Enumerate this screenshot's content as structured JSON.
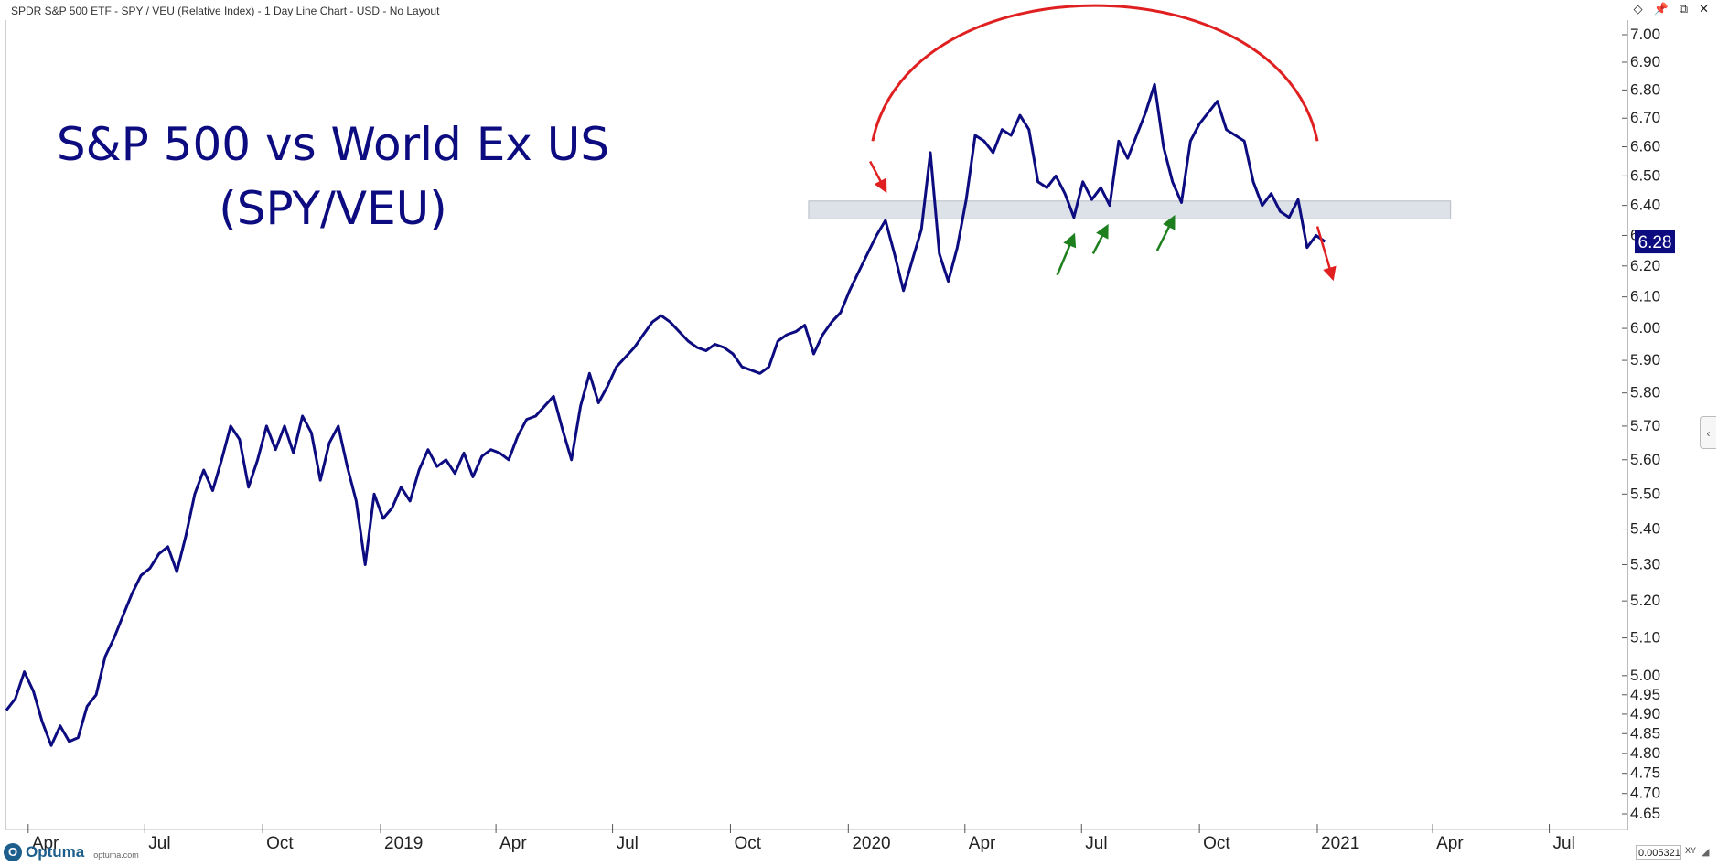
{
  "header": {
    "title": "SPDR S&P 500 ETF - SPY / VEU (Relative Index) - 1 Day Line Chart - USD - No Layout",
    "icons": [
      "diamond-icon",
      "pin-icon",
      "restore-icon",
      "close-icon"
    ]
  },
  "footer": {
    "logo_text": "Optuma",
    "logo_url": "optuma.com",
    "scale_value": "0.0053219",
    "xy_label": "XY"
  },
  "colors": {
    "line": "#0c0c80",
    "title": "#0c0c80",
    "annotation_red": "#e02020",
    "annotation_green": "#1e7f1e",
    "support_band": "#dde1e8",
    "price_label_bg": "#0c0c80"
  },
  "chart_data": {
    "type": "line",
    "title_line1": "S&P 500 vs World Ex US",
    "title_line2": "(SPY/VEU)",
    "y_scale": "log",
    "ylim": [
      4.65,
      7.05
    ],
    "y_ticks": [
      "7.00",
      "6.90",
      "6.80",
      "6.70",
      "6.60",
      "6.50",
      "6.40",
      "6.30",
      "6.20",
      "6.10",
      "6.00",
      "5.90",
      "5.80",
      "5.70",
      "5.60",
      "5.50",
      "5.40",
      "5.30",
      "5.20",
      "5.10",
      "5.00",
      "4.95",
      "4.90",
      "4.85",
      "4.80",
      "4.75",
      "4.70",
      "4.65"
    ],
    "x_range": [
      "2018-03-15",
      "2021-08-31"
    ],
    "x_ticks": [
      {
        "label": "Apr",
        "date": "2018-04-01"
      },
      {
        "label": "Jul",
        "date": "2018-07-01"
      },
      {
        "label": "Oct",
        "date": "2018-10-01"
      },
      {
        "label": "2019",
        "date": "2019-01-01"
      },
      {
        "label": "Apr",
        "date": "2019-04-01"
      },
      {
        "label": "Jul",
        "date": "2019-07-01"
      },
      {
        "label": "Oct",
        "date": "2019-10-01"
      },
      {
        "label": "2020",
        "date": "2020-01-01"
      },
      {
        "label": "Apr",
        "date": "2020-04-01"
      },
      {
        "label": "Jul",
        "date": "2020-07-01"
      },
      {
        "label": "Oct",
        "date": "2020-10-01"
      },
      {
        "label": "2021",
        "date": "2021-01-01"
      },
      {
        "label": "Apr",
        "date": "2021-04-01"
      },
      {
        "label": "Jul",
        "date": "2021-07-01"
      }
    ],
    "last_value_label": "6.28",
    "series": [
      {
        "points": [
          [
            "2018-03-15",
            4.91
          ],
          [
            "2018-03-22",
            4.94
          ],
          [
            "2018-03-29",
            5.01
          ],
          [
            "2018-04-05",
            4.96
          ],
          [
            "2018-04-12",
            4.88
          ],
          [
            "2018-04-19",
            4.82
          ],
          [
            "2018-04-26",
            4.87
          ],
          [
            "2018-05-03",
            4.83
          ],
          [
            "2018-05-10",
            4.84
          ],
          [
            "2018-05-17",
            4.92
          ],
          [
            "2018-05-24",
            4.95
          ],
          [
            "2018-05-31",
            5.05
          ],
          [
            "2018-06-07",
            5.1
          ],
          [
            "2018-06-14",
            5.16
          ],
          [
            "2018-06-21",
            5.22
          ],
          [
            "2018-06-28",
            5.27
          ],
          [
            "2018-07-05",
            5.29
          ],
          [
            "2018-07-12",
            5.33
          ],
          [
            "2018-07-19",
            5.35
          ],
          [
            "2018-07-26",
            5.28
          ],
          [
            "2018-08-02",
            5.38
          ],
          [
            "2018-08-09",
            5.5
          ],
          [
            "2018-08-16",
            5.57
          ],
          [
            "2018-08-23",
            5.51
          ],
          [
            "2018-08-30",
            5.6
          ],
          [
            "2018-09-06",
            5.7
          ],
          [
            "2018-09-13",
            5.66
          ],
          [
            "2018-09-20",
            5.52
          ],
          [
            "2018-09-27",
            5.6
          ],
          [
            "2018-10-04",
            5.7
          ],
          [
            "2018-10-11",
            5.63
          ],
          [
            "2018-10-18",
            5.7
          ],
          [
            "2018-10-25",
            5.62
          ],
          [
            "2018-11-01",
            5.73
          ],
          [
            "2018-11-08",
            5.68
          ],
          [
            "2018-11-15",
            5.54
          ],
          [
            "2018-11-22",
            5.65
          ],
          [
            "2018-11-29",
            5.7
          ],
          [
            "2018-12-06",
            5.58
          ],
          [
            "2018-12-13",
            5.48
          ],
          [
            "2018-12-20",
            5.3
          ],
          [
            "2018-12-27",
            5.5
          ],
          [
            "2019-01-03",
            5.43
          ],
          [
            "2019-01-10",
            5.46
          ],
          [
            "2019-01-17",
            5.52
          ],
          [
            "2019-01-24",
            5.48
          ],
          [
            "2019-01-31",
            5.57
          ],
          [
            "2019-02-07",
            5.63
          ],
          [
            "2019-02-14",
            5.58
          ],
          [
            "2019-02-21",
            5.6
          ],
          [
            "2019-02-28",
            5.56
          ],
          [
            "2019-03-07",
            5.62
          ],
          [
            "2019-03-14",
            5.55
          ],
          [
            "2019-03-21",
            5.61
          ],
          [
            "2019-03-28",
            5.63
          ],
          [
            "2019-04-04",
            5.62
          ],
          [
            "2019-04-11",
            5.6
          ],
          [
            "2019-04-18",
            5.67
          ],
          [
            "2019-04-25",
            5.72
          ],
          [
            "2019-05-02",
            5.73
          ],
          [
            "2019-05-09",
            5.76
          ],
          [
            "2019-05-16",
            5.79
          ],
          [
            "2019-05-23",
            5.69
          ],
          [
            "2019-05-30",
            5.6
          ],
          [
            "2019-06-06",
            5.76
          ],
          [
            "2019-06-13",
            5.86
          ],
          [
            "2019-06-20",
            5.77
          ],
          [
            "2019-06-27",
            5.82
          ],
          [
            "2019-07-04",
            5.88
          ],
          [
            "2019-07-11",
            5.91
          ],
          [
            "2019-07-18",
            5.94
          ],
          [
            "2019-07-25",
            5.98
          ],
          [
            "2019-08-01",
            6.02
          ],
          [
            "2019-08-08",
            6.04
          ],
          [
            "2019-08-15",
            6.02
          ],
          [
            "2019-08-22",
            5.99
          ],
          [
            "2019-08-29",
            5.96
          ],
          [
            "2019-09-05",
            5.94
          ],
          [
            "2019-09-12",
            5.93
          ],
          [
            "2019-09-19",
            5.95
          ],
          [
            "2019-09-26",
            5.94
          ],
          [
            "2019-10-03",
            5.92
          ],
          [
            "2019-10-10",
            5.88
          ],
          [
            "2019-10-17",
            5.87
          ],
          [
            "2019-10-24",
            5.86
          ],
          [
            "2019-10-31",
            5.88
          ],
          [
            "2019-11-07",
            5.96
          ],
          [
            "2019-11-14",
            5.98
          ],
          [
            "2019-11-21",
            5.99
          ],
          [
            "2019-11-28",
            6.01
          ],
          [
            "2019-12-05",
            5.92
          ],
          [
            "2019-12-12",
            5.98
          ],
          [
            "2019-12-19",
            6.02
          ],
          [
            "2019-12-26",
            6.05
          ],
          [
            "2020-01-02",
            6.12
          ],
          [
            "2020-01-09",
            6.18
          ],
          [
            "2020-01-16",
            6.24
          ],
          [
            "2020-01-23",
            6.3
          ],
          [
            "2020-01-30",
            6.35
          ],
          [
            "2020-02-06",
            6.24
          ],
          [
            "2020-02-13",
            6.12
          ],
          [
            "2020-02-20",
            6.22
          ],
          [
            "2020-02-27",
            6.32
          ],
          [
            "2020-03-05",
            6.58
          ],
          [
            "2020-03-12",
            6.24
          ],
          [
            "2020-03-19",
            6.15
          ],
          [
            "2020-03-26",
            6.26
          ],
          [
            "2020-04-02",
            6.42
          ],
          [
            "2020-04-09",
            6.64
          ],
          [
            "2020-04-16",
            6.62
          ],
          [
            "2020-04-23",
            6.58
          ],
          [
            "2020-04-30",
            6.66
          ],
          [
            "2020-05-07",
            6.64
          ],
          [
            "2020-05-14",
            6.71
          ],
          [
            "2020-05-21",
            6.66
          ],
          [
            "2020-05-28",
            6.48
          ],
          [
            "2020-06-04",
            6.46
          ],
          [
            "2020-06-11",
            6.5
          ],
          [
            "2020-06-18",
            6.44
          ],
          [
            "2020-06-25",
            6.36
          ],
          [
            "2020-07-02",
            6.48
          ],
          [
            "2020-07-09",
            6.42
          ],
          [
            "2020-07-16",
            6.46
          ],
          [
            "2020-07-23",
            6.4
          ],
          [
            "2020-07-30",
            6.62
          ],
          [
            "2020-08-06",
            6.56
          ],
          [
            "2020-08-13",
            6.64
          ],
          [
            "2020-08-20",
            6.72
          ],
          [
            "2020-08-27",
            6.82
          ],
          [
            "2020-09-03",
            6.6
          ],
          [
            "2020-09-10",
            6.48
          ],
          [
            "2020-09-17",
            6.41
          ],
          [
            "2020-09-24",
            6.62
          ],
          [
            "2020-10-01",
            6.68
          ],
          [
            "2020-10-08",
            6.72
          ],
          [
            "2020-10-15",
            6.76
          ],
          [
            "2020-10-22",
            6.66
          ],
          [
            "2020-10-29",
            6.64
          ],
          [
            "2020-11-05",
            6.62
          ],
          [
            "2020-11-12",
            6.48
          ],
          [
            "2020-11-19",
            6.4
          ],
          [
            "2020-11-26",
            6.44
          ],
          [
            "2020-12-03",
            6.38
          ],
          [
            "2020-12-10",
            6.36
          ],
          [
            "2020-12-17",
            6.42
          ],
          [
            "2020-12-24",
            6.26
          ],
          [
            "2020-12-31",
            6.3
          ],
          [
            "2021-01-07",
            6.28
          ]
        ]
      }
    ],
    "annotations": {
      "support_band": {
        "from_date": "2019-12-01",
        "to_date": "2021-04-15",
        "y_low": 6.355,
        "y_high": 6.415
      },
      "arc": {
        "from_date": "2020-01-20",
        "to_date": "2021-01-01",
        "y_base": 6.62,
        "y_peak": 6.95
      },
      "red_arrows": [
        {
          "from": [
            "2020-01-18",
            6.55
          ],
          "to": [
            "2020-01-30",
            6.45
          ]
        },
        {
          "from": [
            "2021-01-01",
            6.33
          ],
          "to": [
            "2021-01-13",
            6.16
          ]
        }
      ],
      "green_arrows": [
        {
          "from": [
            "2020-06-12",
            6.17
          ],
          "to": [
            "2020-06-25",
            6.3
          ]
        },
        {
          "from": [
            "2020-07-10",
            6.24
          ],
          "to": [
            "2020-07-21",
            6.33
          ]
        },
        {
          "from": [
            "2020-08-29",
            6.25
          ],
          "to": [
            "2020-09-11",
            6.36
          ]
        }
      ]
    }
  }
}
